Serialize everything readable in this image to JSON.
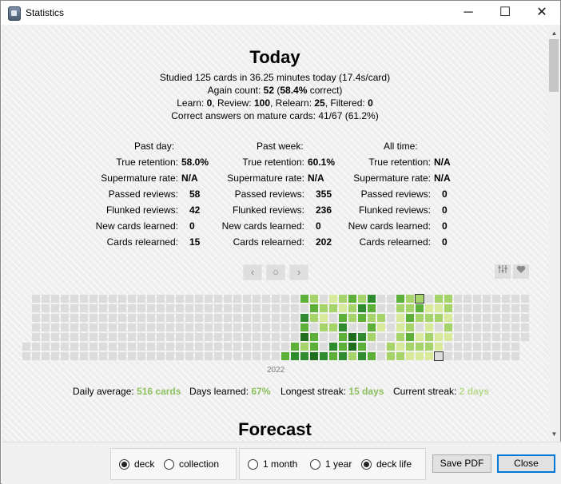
{
  "window": {
    "title": "Statistics",
    "controls": {
      "minimize": "─",
      "maximize": "☐",
      "close": "✕"
    }
  },
  "today": {
    "heading": "Today",
    "line1": "Studied 125 cards in 36.25 minutes today (17.4s/card)",
    "again_prefix": "Again count: ",
    "again_count": "52",
    "again_mid": " (",
    "again_pct": "58.4%",
    "again_suffix": " correct)",
    "learn_label": "Learn: ",
    "learn": "0",
    "review_label": ", Review: ",
    "review": "100",
    "relearn_label": ", Relearn: ",
    "relearn": "25",
    "filtered_label": ", Filtered: ",
    "filtered": "0",
    "mature_line": "Correct answers on mature cards: 41/67 (61.2%)"
  },
  "retention": {
    "labels": [
      "True retention:",
      "Supermature rate:",
      "Passed reviews:",
      "Flunked reviews:",
      "New cards learned:",
      "Cards relearned:"
    ],
    "columns": [
      {
        "heading": "Past day:",
        "values": [
          "58.0%",
          "N/A",
          "58",
          "42",
          "0",
          "15"
        ]
      },
      {
        "heading": "Past week:",
        "values": [
          "60.1%",
          "N/A",
          "355",
          "236",
          "0",
          "202"
        ]
      },
      {
        "heading": "All time:",
        "values": [
          "N/A",
          "N/A",
          "0",
          "0",
          "0",
          "0"
        ]
      }
    ]
  },
  "heatmap_nav": {
    "prev": "‹",
    "reset": "○",
    "next": "›",
    "filter_icon": "sliders-icon",
    "heart_icon": "heart-icon"
  },
  "heatmap": {
    "year": "2022",
    "colors": {
      "empty": "#dcdcdc",
      "l1": "#d7ea9c",
      "l2": "#a6d36a",
      "l3": "#5cb038",
      "l4": "#2e8b2e",
      "l5": "#1e6e1e"
    }
  },
  "summary_footer": {
    "daily_avg_label": "Daily average: ",
    "daily_avg": "516 cards",
    "days_learned_label": "Days learned: ",
    "days_learned": "67%",
    "longest_label": "Longest streak: ",
    "longest": "15 days",
    "current_label": "Current streak: ",
    "current": "2 days"
  },
  "forecast": {
    "heading": "Forecast"
  },
  "bottom": {
    "scope": {
      "options": [
        "deck",
        "collection"
      ],
      "selected": "deck"
    },
    "range": {
      "options": [
        "1 month",
        "1 year",
        "deck life"
      ],
      "selected": "deck life"
    },
    "save_pdf": "Save PDF",
    "close": "Close"
  }
}
